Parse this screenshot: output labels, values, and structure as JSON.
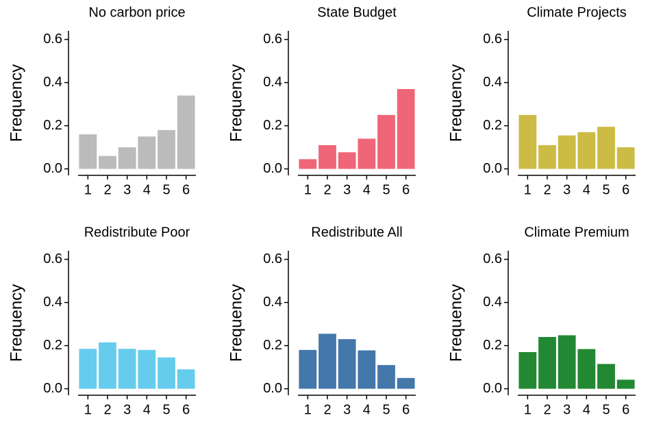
{
  "chart_data": [
    {
      "type": "bar",
      "title": "No carbon price",
      "y_label": "Frequency",
      "categories": [
        1,
        2,
        3,
        4,
        5,
        6
      ],
      "values": [
        0.16,
        0.06,
        0.1,
        0.15,
        0.18,
        0.34
      ],
      "color": "#bbbbbb",
      "ylim": [
        -0.03,
        0.64
      ],
      "yticks": [
        {
          "value": 0,
          "label": "0.0"
        },
        0.2,
        0.4,
        0.6
      ]
    },
    {
      "type": "bar",
      "title": "State Budget",
      "y_label": "Frequency",
      "categories": [
        1,
        2,
        3,
        4,
        5,
        6
      ],
      "values": [
        0.045,
        0.11,
        0.077,
        0.14,
        0.25,
        0.37
      ],
      "color": "#ee6677",
      "ylim": [
        -0.03,
        0.64
      ],
      "yticks": [
        {
          "value": 0,
          "label": "0.0"
        },
        0.2,
        0.4,
        0.6
      ]
    },
    {
      "type": "bar",
      "title": "Climate Projects",
      "y_label": "Frequency",
      "categories": [
        1,
        2,
        3,
        4,
        5,
        6
      ],
      "values": [
        0.25,
        0.11,
        0.155,
        0.17,
        0.195,
        0.1
      ],
      "color": "#ccbb44",
      "ylim": [
        -0.03,
        0.64
      ],
      "yticks": [
        {
          "value": 0,
          "label": "0.0"
        },
        0.2,
        0.4,
        0.6
      ]
    },
    {
      "type": "bar",
      "title": "Redistribute Poor",
      "y_label": "Frequency",
      "categories": [
        1,
        2,
        3,
        4,
        5,
        6
      ],
      "values": [
        0.185,
        0.215,
        0.185,
        0.18,
        0.145,
        0.09
      ],
      "color": "#66ccee",
      "ylim": [
        -0.03,
        0.64
      ],
      "yticks": [
        {
          "value": 0,
          "label": "0.0"
        },
        0.2,
        0.4,
        0.6
      ]
    },
    {
      "type": "bar",
      "title": "Redistribute All",
      "y_label": "Frequency",
      "categories": [
        1,
        2,
        3,
        4,
        5,
        6
      ],
      "values": [
        0.18,
        0.255,
        0.23,
        0.178,
        0.11,
        0.05
      ],
      "color": "#4477aa",
      "ylim": [
        -0.03,
        0.64
      ],
      "yticks": [
        {
          "value": 0,
          "label": "0.0"
        },
        0.2,
        0.4,
        0.6
      ]
    },
    {
      "type": "bar",
      "title": "Climate Premium",
      "y_label": "Frequency",
      "categories": [
        1,
        2,
        3,
        4,
        5,
        6
      ],
      "values": [
        0.17,
        0.24,
        0.248,
        0.184,
        0.115,
        0.042
      ],
      "color": "#228833",
      "ylim": [
        -0.03,
        0.64
      ],
      "yticks": [
        {
          "value": 0,
          "label": "0.0"
        },
        0.2,
        0.4,
        0.6
      ]
    }
  ]
}
